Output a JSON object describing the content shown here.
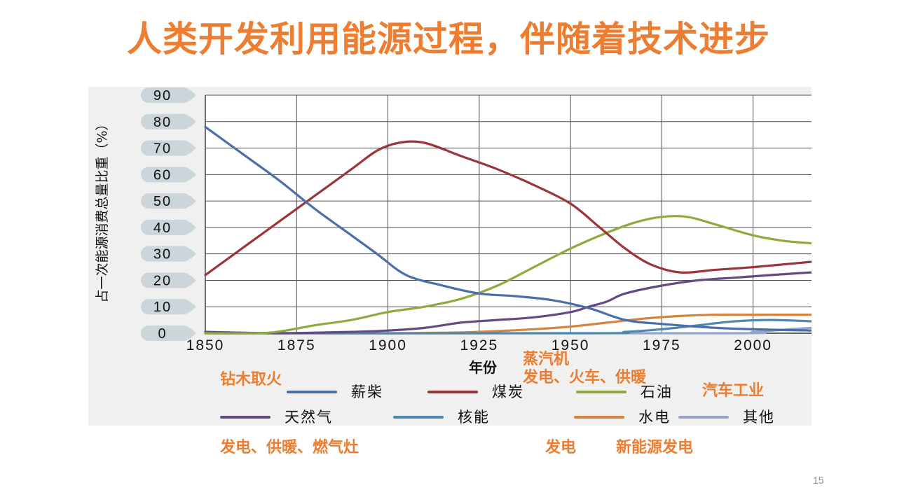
{
  "slide": {
    "title": "人类开发利用能源过程，伴随着技术进步",
    "page_number": "15"
  },
  "annotations": {
    "wood": "钻木取火",
    "steam_title": "蒸汽机",
    "steam_uses": "发电、火车、供暖",
    "auto": "汽车工业",
    "gas_uses": "发电、供暖、燃气灶",
    "nuclear_uses": "发电",
    "new_energy": "新能源发电"
  },
  "chart_data": {
    "type": "line",
    "xlabel": "年份",
    "ylabel": "占一次能源消费总量比重（%）",
    "xlim": [
      1850,
      2016
    ],
    "ylim": [
      0,
      90
    ],
    "x_ticks": [
      "1850",
      "1875",
      "1900",
      "1925",
      "1950",
      "1975",
      "2000"
    ],
    "y_ticks": [
      "90",
      "80",
      "70",
      "60",
      "50",
      "40",
      "30",
      "20",
      "10",
      "0"
    ],
    "grid": true,
    "legend_position": "bottom",
    "series": [
      {
        "name": "薪柴",
        "color": "#4a6ea9",
        "points": [
          [
            1850,
            78
          ],
          [
            1860,
            68
          ],
          [
            1870,
            58
          ],
          [
            1880,
            47
          ],
          [
            1890,
            37
          ],
          [
            1897,
            30
          ],
          [
            1905,
            22
          ],
          [
            1915,
            18
          ],
          [
            1925,
            15
          ],
          [
            1935,
            14
          ],
          [
            1945,
            12.5
          ],
          [
            1955,
            9.5
          ],
          [
            1965,
            5
          ],
          [
            1975,
            3.5
          ],
          [
            1990,
            2
          ],
          [
            2000,
            1.5
          ],
          [
            2016,
            1
          ]
        ]
      },
      {
        "name": "煤炭",
        "color": "#9b353a",
        "points": [
          [
            1850,
            22
          ],
          [
            1860,
            32
          ],
          [
            1870,
            42
          ],
          [
            1880,
            52
          ],
          [
            1890,
            62
          ],
          [
            1897,
            69
          ],
          [
            1903,
            72
          ],
          [
            1910,
            72
          ],
          [
            1920,
            67
          ],
          [
            1930,
            62
          ],
          [
            1940,
            56
          ],
          [
            1950,
            49
          ],
          [
            1958,
            40
          ],
          [
            1965,
            32
          ],
          [
            1972,
            26
          ],
          [
            1980,
            23
          ],
          [
            1990,
            24
          ],
          [
            2000,
            25
          ],
          [
            2016,
            27
          ]
        ]
      },
      {
        "name": "石油",
        "color": "#8daa3c",
        "points": [
          [
            1850,
            0
          ],
          [
            1865,
            0
          ],
          [
            1872,
            1
          ],
          [
            1880,
            3
          ],
          [
            1890,
            5
          ],
          [
            1900,
            8
          ],
          [
            1910,
            10
          ],
          [
            1920,
            13
          ],
          [
            1930,
            18
          ],
          [
            1940,
            25
          ],
          [
            1950,
            32
          ],
          [
            1960,
            38
          ],
          [
            1968,
            42
          ],
          [
            1975,
            44
          ],
          [
            1982,
            44
          ],
          [
            1990,
            41
          ],
          [
            2000,
            37
          ],
          [
            2008,
            35
          ],
          [
            2016,
            34
          ]
        ]
      },
      {
        "name": "天然气",
        "color": "#654a82",
        "points": [
          [
            1850,
            0.5
          ],
          [
            1870,
            0
          ],
          [
            1890,
            0.5
          ],
          [
            1900,
            1
          ],
          [
            1910,
            2
          ],
          [
            1920,
            4
          ],
          [
            1930,
            5
          ],
          [
            1940,
            6
          ],
          [
            1950,
            8
          ],
          [
            1955,
            10
          ],
          [
            1960,
            12
          ],
          [
            1965,
            15
          ],
          [
            1975,
            18
          ],
          [
            1985,
            20
          ],
          [
            1995,
            21
          ],
          [
            2005,
            22
          ],
          [
            2016,
            23
          ]
        ]
      },
      {
        "name": "核能",
        "color": "#4e89ad",
        "points": [
          [
            1850,
            0
          ],
          [
            1955,
            0
          ],
          [
            1965,
            0.5
          ],
          [
            1975,
            1.5
          ],
          [
            1985,
            3
          ],
          [
            1995,
            4.5
          ],
          [
            2005,
            5
          ],
          [
            2016,
            4.5
          ]
        ]
      },
      {
        "name": "水电",
        "color": "#d5843f",
        "points": [
          [
            1850,
            0
          ],
          [
            1900,
            0
          ],
          [
            1920,
            0.3
          ],
          [
            1930,
            0.8
          ],
          [
            1940,
            1.5
          ],
          [
            1950,
            2.5
          ],
          [
            1960,
            4
          ],
          [
            1970,
            5.5
          ],
          [
            1980,
            6.5
          ],
          [
            1990,
            7
          ],
          [
            2000,
            7
          ],
          [
            2016,
            7
          ]
        ]
      },
      {
        "name": "其他",
        "color": "#93a3c9",
        "points": [
          [
            1850,
            0
          ],
          [
            1990,
            0
          ],
          [
            2000,
            0.5
          ],
          [
            2010,
            1.5
          ],
          [
            2016,
            2
          ]
        ]
      }
    ]
  }
}
